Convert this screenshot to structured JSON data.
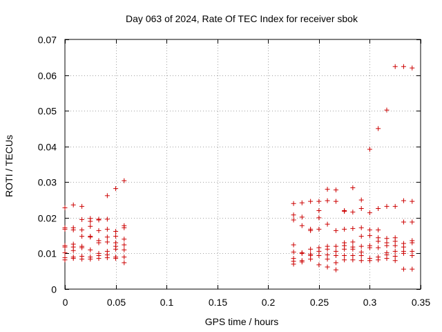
{
  "chart_data": {
    "type": "scatter",
    "title": "Day 063 of 2024, Rate Of TEC Index for receiver sbok",
    "xlabel": "GPS time / hours",
    "ylabel": "ROTI / TECUs",
    "xlim": [
      0,
      0.35
    ],
    "ylim": [
      0,
      0.07
    ],
    "xticks": [
      0,
      0.05,
      0.1,
      0.15,
      0.2,
      0.25,
      0.3,
      0.35
    ],
    "xtick_labels": [
      "0",
      "0.05",
      "0.1",
      "0.15",
      "0.2",
      "0.25",
      "0.3",
      "0.35"
    ],
    "yticks": [
      0,
      0.01,
      0.02,
      0.03,
      0.04,
      0.05,
      0.06,
      0.07
    ],
    "ytick_labels": [
      "0",
      "0.01",
      "0.02",
      "0.03",
      "0.04",
      "0.05",
      "0.06",
      "0.07"
    ],
    "grid": true,
    "marker": "+",
    "color": "#cc0000",
    "series": [
      {
        "name": "ROTI",
        "points": [
          [
            0.0,
            0.0228
          ],
          [
            0.0,
            0.0172
          ],
          [
            0.0,
            0.0168
          ],
          [
            0.0,
            0.0122
          ],
          [
            0.0,
            0.0118
          ],
          [
            0.0,
            0.0102
          ],
          [
            0.0,
            0.0088
          ],
          [
            0.0,
            0.0082
          ],
          [
            0.0083,
            0.0236
          ],
          [
            0.0083,
            0.0172
          ],
          [
            0.0083,
            0.0166
          ],
          [
            0.0083,
            0.0126
          ],
          [
            0.0083,
            0.0118
          ],
          [
            0.0083,
            0.0108
          ],
          [
            0.0083,
            0.009
          ],
          [
            0.0083,
            0.0086
          ],
          [
            0.0167,
            0.0232
          ],
          [
            0.0167,
            0.0195
          ],
          [
            0.0167,
            0.0166
          ],
          [
            0.0167,
            0.0148
          ],
          [
            0.0167,
            0.012
          ],
          [
            0.0167,
            0.0116
          ],
          [
            0.0167,
            0.0092
          ],
          [
            0.0167,
            0.0084
          ],
          [
            0.025,
            0.0198
          ],
          [
            0.025,
            0.019
          ],
          [
            0.025,
            0.0176
          ],
          [
            0.025,
            0.0148
          ],
          [
            0.025,
            0.0146
          ],
          [
            0.025,
            0.011
          ],
          [
            0.025,
            0.009
          ],
          [
            0.025,
            0.0084
          ],
          [
            0.0333,
            0.0196
          ],
          [
            0.0333,
            0.0194
          ],
          [
            0.0333,
            0.0164
          ],
          [
            0.0333,
            0.0136
          ],
          [
            0.0333,
            0.013
          ],
          [
            0.0333,
            0.01
          ],
          [
            0.0333,
            0.0094
          ],
          [
            0.0333,
            0.0086
          ],
          [
            0.0417,
            0.0262
          ],
          [
            0.0417,
            0.0196
          ],
          [
            0.0417,
            0.0168
          ],
          [
            0.0417,
            0.0146
          ],
          [
            0.0417,
            0.0132
          ],
          [
            0.0417,
            0.0106
          ],
          [
            0.0417,
            0.0096
          ],
          [
            0.0417,
            0.0088
          ],
          [
            0.05,
            0.0282
          ],
          [
            0.05,
            0.0162
          ],
          [
            0.05,
            0.0148
          ],
          [
            0.05,
            0.013
          ],
          [
            0.05,
            0.012
          ],
          [
            0.05,
            0.0112
          ],
          [
            0.05,
            0.009
          ],
          [
            0.05,
            0.0086
          ],
          [
            0.0583,
            0.0304
          ],
          [
            0.0583,
            0.0178
          ],
          [
            0.0583,
            0.0172
          ],
          [
            0.0583,
            0.014
          ],
          [
            0.0583,
            0.0124
          ],
          [
            0.0583,
            0.011
          ],
          [
            0.0583,
            0.009
          ],
          [
            0.0583,
            0.0074
          ],
          [
            0.225,
            0.024
          ],
          [
            0.225,
            0.0208
          ],
          [
            0.225,
            0.0194
          ],
          [
            0.225,
            0.0124
          ],
          [
            0.225,
            0.0104
          ],
          [
            0.225,
            0.0086
          ],
          [
            0.225,
            0.0078
          ],
          [
            0.225,
            0.007
          ],
          [
            0.2333,
            0.0242
          ],
          [
            0.2333,
            0.0202
          ],
          [
            0.2333,
            0.0178
          ],
          [
            0.2333,
            0.0102
          ],
          [
            0.2333,
            0.01
          ],
          [
            0.2333,
            0.008
          ],
          [
            0.2333,
            0.0076
          ],
          [
            0.2417,
            0.0246
          ],
          [
            0.2417,
            0.0168
          ],
          [
            0.2417,
            0.0164
          ],
          [
            0.2417,
            0.0112
          ],
          [
            0.2417,
            0.0098
          ],
          [
            0.2417,
            0.0094
          ],
          [
            0.2417,
            0.0084
          ],
          [
            0.25,
            0.0246
          ],
          [
            0.25,
            0.022
          ],
          [
            0.25,
            0.02
          ],
          [
            0.25,
            0.0168
          ],
          [
            0.25,
            0.0116
          ],
          [
            0.25,
            0.0106
          ],
          [
            0.25,
            0.0094
          ],
          [
            0.25,
            0.0068
          ],
          [
            0.2583,
            0.028
          ],
          [
            0.2583,
            0.0248
          ],
          [
            0.2583,
            0.0182
          ],
          [
            0.2583,
            0.012
          ],
          [
            0.2583,
            0.0112
          ],
          [
            0.2583,
            0.0096
          ],
          [
            0.2583,
            0.0084
          ],
          [
            0.2583,
            0.0062
          ],
          [
            0.2667,
            0.0278
          ],
          [
            0.2667,
            0.0246
          ],
          [
            0.2667,
            0.0164
          ],
          [
            0.2667,
            0.012
          ],
          [
            0.2667,
            0.0106
          ],
          [
            0.2667,
            0.0094
          ],
          [
            0.2667,
            0.0074
          ],
          [
            0.2667,
            0.0054
          ],
          [
            0.275,
            0.022
          ],
          [
            0.275,
            0.0218
          ],
          [
            0.275,
            0.0168
          ],
          [
            0.275,
            0.013
          ],
          [
            0.275,
            0.0122
          ],
          [
            0.275,
            0.0112
          ],
          [
            0.275,
            0.0094
          ],
          [
            0.275,
            0.0082
          ],
          [
            0.2833,
            0.0284
          ],
          [
            0.2833,
            0.0216
          ],
          [
            0.2833,
            0.017
          ],
          [
            0.2833,
            0.0132
          ],
          [
            0.2833,
            0.0118
          ],
          [
            0.2833,
            0.0112
          ],
          [
            0.2833,
            0.0094
          ],
          [
            0.2833,
            0.0082
          ],
          [
            0.2917,
            0.025
          ],
          [
            0.2917,
            0.0226
          ],
          [
            0.2917,
            0.0172
          ],
          [
            0.2917,
            0.0148
          ],
          [
            0.2917,
            0.012
          ],
          [
            0.2917,
            0.0104
          ],
          [
            0.2917,
            0.0094
          ],
          [
            0.2917,
            0.008
          ],
          [
            0.3,
            0.0392
          ],
          [
            0.3,
            0.0214
          ],
          [
            0.3,
            0.0166
          ],
          [
            0.3,
            0.015
          ],
          [
            0.3,
            0.0122
          ],
          [
            0.3,
            0.0116
          ],
          [
            0.3,
            0.0086
          ],
          [
            0.3,
            0.008
          ],
          [
            0.3083,
            0.045
          ],
          [
            0.3083,
            0.0226
          ],
          [
            0.3083,
            0.0166
          ],
          [
            0.3083,
            0.0144
          ],
          [
            0.3083,
            0.0134
          ],
          [
            0.3083,
            0.0116
          ],
          [
            0.3083,
            0.009
          ],
          [
            0.3083,
            0.0082
          ],
          [
            0.3167,
            0.0502
          ],
          [
            0.3167,
            0.0232
          ],
          [
            0.3167,
            0.0142
          ],
          [
            0.3167,
            0.013
          ],
          [
            0.3167,
            0.0122
          ],
          [
            0.3167,
            0.0102
          ],
          [
            0.3167,
            0.0096
          ],
          [
            0.3167,
            0.0086
          ],
          [
            0.325,
            0.0624
          ],
          [
            0.325,
            0.0232
          ],
          [
            0.325,
            0.0144
          ],
          [
            0.325,
            0.0134
          ],
          [
            0.325,
            0.0122
          ],
          [
            0.325,
            0.0106
          ],
          [
            0.325,
            0.0092
          ],
          [
            0.325,
            0.008
          ],
          [
            0.3333,
            0.0624
          ],
          [
            0.3333,
            0.0248
          ],
          [
            0.3333,
            0.0188
          ],
          [
            0.3333,
            0.0128
          ],
          [
            0.3333,
            0.0118
          ],
          [
            0.3333,
            0.0106
          ],
          [
            0.3333,
            0.01
          ],
          [
            0.3333,
            0.0056
          ],
          [
            0.3417,
            0.062
          ],
          [
            0.3417,
            0.0246
          ],
          [
            0.3417,
            0.0188
          ],
          [
            0.3417,
            0.0136
          ],
          [
            0.3417,
            0.013
          ],
          [
            0.3417,
            0.0106
          ],
          [
            0.3417,
            0.0094
          ],
          [
            0.3417,
            0.0056
          ]
        ]
      }
    ]
  }
}
